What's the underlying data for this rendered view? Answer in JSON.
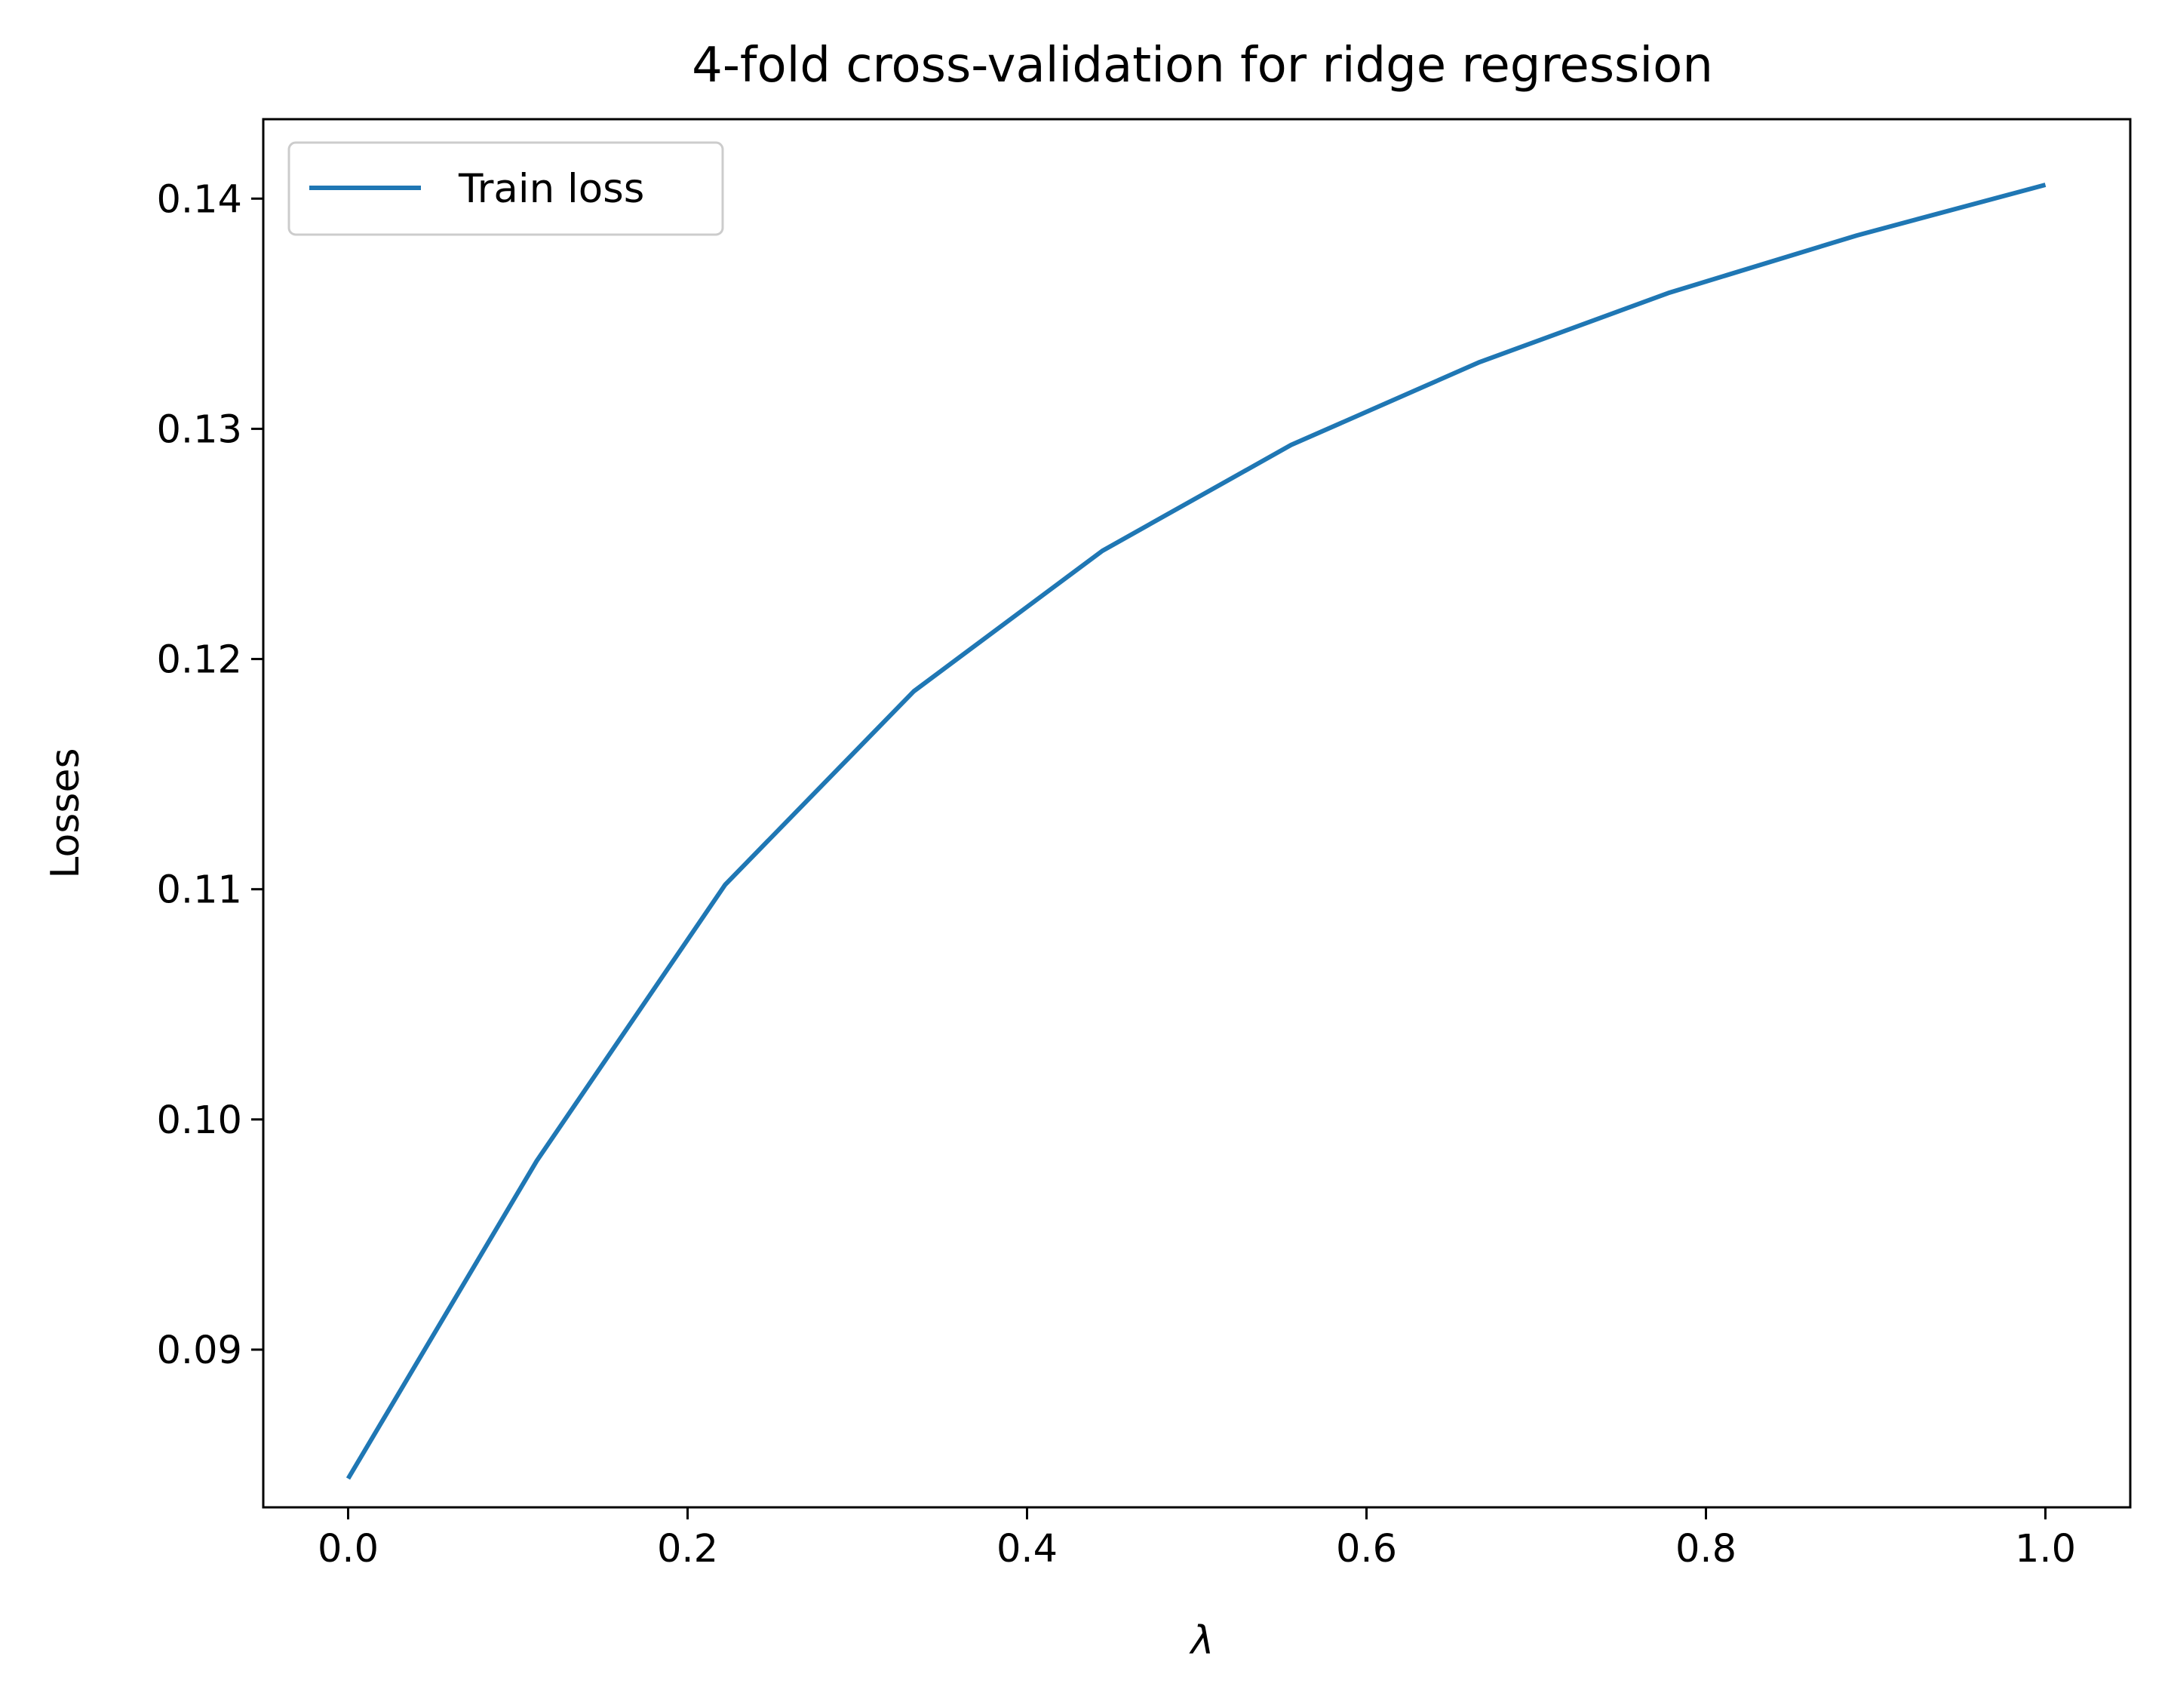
{
  "chart_data": {
    "type": "line",
    "title": "4-fold cross-validation for ridge regression",
    "xlabel": "λ",
    "ylabel": "Losses",
    "xlim": [
      -0.05,
      1.05
    ],
    "ylim": [
      0.08315,
      0.14345
    ],
    "xticks": [
      0.0,
      0.2,
      0.4,
      0.6,
      0.8,
      1.0
    ],
    "xtick_labels": [
      "0.0",
      "0.2",
      "0.4",
      "0.6",
      "0.8",
      "1.0"
    ],
    "yticks": [
      0.09,
      0.1,
      0.11,
      0.12,
      0.13,
      0.14
    ],
    "ytick_labels": [
      "0.09",
      "0.10",
      "0.11",
      "0.12",
      "0.13",
      "0.14"
    ],
    "grid": false,
    "legend_position": "top-left",
    "series": [
      {
        "name": "Train loss",
        "color": "#1f77b4",
        "x": [
          0.0,
          0.1111,
          0.2222,
          0.3333,
          0.4444,
          0.5556,
          0.6667,
          0.7778,
          0.8889,
          1.0
        ],
        "y": [
          0.0844,
          0.0982,
          0.1102,
          0.1186,
          0.1247,
          0.1293,
          0.1329,
          0.1359,
          0.1384,
          0.1406
        ]
      }
    ]
  }
}
